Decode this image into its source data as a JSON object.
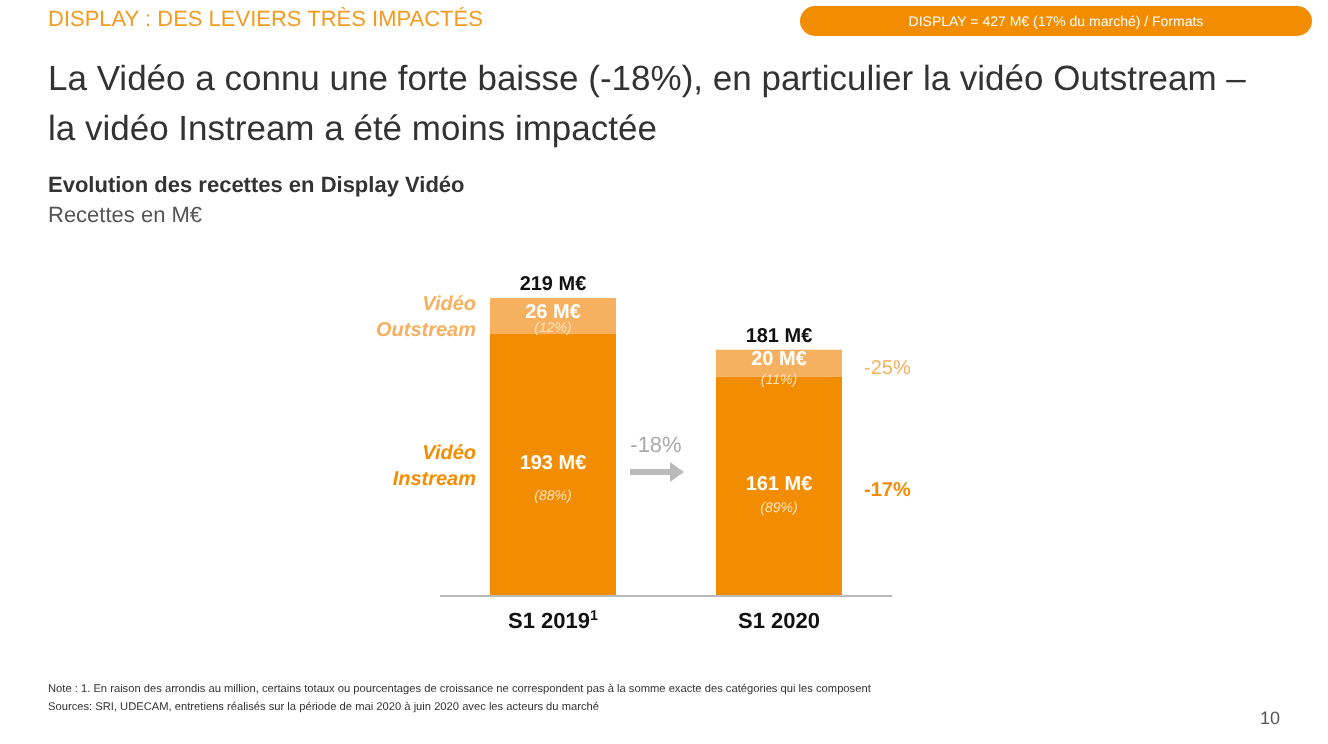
{
  "chart_data": {
    "type": "bar",
    "stacked": true,
    "legend": "left",
    "title": "La Vidéo a connu une forte baisse (-18%), en particulier la vidéo Outstream – la vidéo Instream a été moins impactée",
    "subtitle": "Evolution des recettes en Display Vidéo",
    "categories": [
      "S1 2019$^{1}$",
      "S1 2020"
    ],
    "series": [
      {
        "name": "Vidéo Instream",
        "color": "#f28c00",
        "values": [
          193,
          161
        ],
        "value_labels": [
          "193 M€",
          "161 M€"
        ]
      },
      {
        "name": "Vidéo Outstream",
        "color": "#f5b060",
        "values": [
          26,
          20
        ],
        "value_labels": [
          "26 M€",
          "20 M€"
        ]
      }
    ],
    "totals": [
      "219 M€",
      "181 M€"
    ],
    "annotations": [
      "DISPLAY : DES LEVIERS TRÈS IMPACTÉS",
      "DISPLAY = 427 M€ (17% du marché) / Formats",
      "-18%",
      "-25%",
      "-17%",
      "Note : 1. En raison des arrondis au million, certains totaux ou pourcentages de croissance ne correspondent pas à la somme exacte des catégories qui les composent",
      "Sources: SRI, UDECAM, entretiens réalisés sur la période de mai 2020 à juin 2020 avec les acteurs du marché",
      "10",
      "(88%)",
      "(12%)",
      "(89%)",
      "(11%)",
      "Recettes en M€"
    ]
  }
}
